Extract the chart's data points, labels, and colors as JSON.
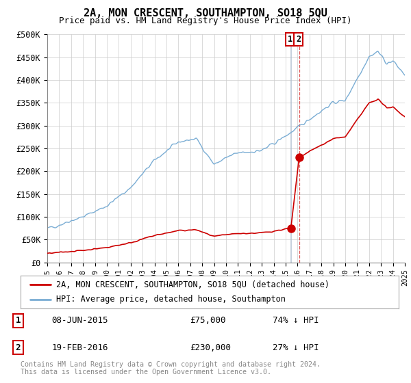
{
  "title": "2A, MON CRESCENT, SOUTHAMPTON, SO18 5QU",
  "subtitle": "Price paid vs. HM Land Registry's House Price Index (HPI)",
  "ylabel_ticks": [
    "£0",
    "£50K",
    "£100K",
    "£150K",
    "£200K",
    "£250K",
    "£300K",
    "£350K",
    "£400K",
    "£450K",
    "£500K"
  ],
  "ytick_values": [
    0,
    50000,
    100000,
    150000,
    200000,
    250000,
    300000,
    350000,
    400000,
    450000,
    500000
  ],
  "xlim_start": 1995,
  "xlim_end": 2025,
  "ylim_min": 0,
  "ylim_max": 500000,
  "legend_entries": [
    "2A, MON CRESCENT, SOUTHAMPTON, SO18 5QU (detached house)",
    "HPI: Average price, detached house, Southampton"
  ],
  "legend_colors": [
    "#cc0000",
    "#7aadd4"
  ],
  "sale_points": [
    {
      "date_num": 2015.44,
      "price": 75000,
      "label": "1"
    },
    {
      "date_num": 2016.13,
      "price": 230000,
      "label": "2"
    }
  ],
  "annotations": [
    {
      "label": "1",
      "date": "08-JUN-2015",
      "price": "£75,000",
      "hpi_pct": "74% ↓ HPI"
    },
    {
      "label": "2",
      "date": "19-FEB-2016",
      "price": "£230,000",
      "hpi_pct": "27% ↓ HPI"
    }
  ],
  "footer": "Contains HM Land Registry data © Crown copyright and database right 2024.\nThis data is licensed under the Open Government Licence v3.0.",
  "hpi_color": "#7aadd4",
  "sale_color": "#cc0000",
  "vline1_color": "#aabbcc",
  "vline2_color": "#dd4444",
  "grid_color": "#cccccc",
  "background_color": "#ffffff"
}
